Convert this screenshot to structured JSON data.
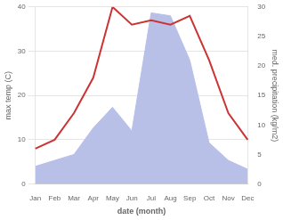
{
  "chart_data": {
    "type": "line",
    "xlabel": "date (month)",
    "ylabel": "max temp (C)",
    "y2label": "med. precipitation (kg/m2)",
    "categories": [
      "Jan",
      "Feb",
      "Mar",
      "Apr",
      "May",
      "Jun",
      "Jul",
      "Aug",
      "Sep",
      "Oct",
      "Nov",
      "Dec"
    ],
    "series": [
      {
        "type": "line",
        "color": "#cc3333",
        "axis": "y",
        "values": [
          8.0,
          10.0,
          16.0,
          24.0,
          40.0,
          36.0,
          37.0,
          36.0,
          38.0,
          28.0,
          16.0,
          10.0
        ]
      },
      {
        "type": "area",
        "color": "#b8c0e8",
        "axis": "y2",
        "values": [
          3.0,
          4.0,
          5.0,
          9.5,
          13.0,
          9.0,
          29.0,
          28.5,
          21.0,
          7.0,
          4.0,
          2.5
        ]
      }
    ],
    "ylim": [
      0,
      40
    ],
    "yticks": [
      0,
      10,
      20,
      30,
      40
    ],
    "y2lim": [
      0,
      30
    ],
    "y2ticks": [
      0,
      5,
      10,
      15,
      20,
      25,
      30
    ],
    "grid": true
  }
}
